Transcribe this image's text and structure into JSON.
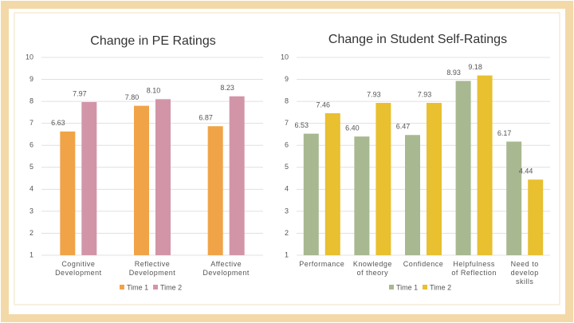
{
  "chart_data": [
    {
      "type": "bar",
      "title": "Change in PE Ratings",
      "categories": [
        "Cognitive Development",
        "Reflective Development",
        "Affective Development"
      ],
      "series": [
        {
          "name": "Time 1",
          "color": "#f0a447",
          "values": [
            6.63,
            7.8,
            6.87
          ],
          "value_labels": [
            "6.63",
            "7.80",
            "6.87"
          ]
        },
        {
          "name": "Time 2",
          "color": "#d295a8",
          "values": [
            7.97,
            8.1,
            8.23
          ],
          "value_labels": [
            "7.97",
            "8.10",
            "8.23"
          ]
        }
      ],
      "ylim": [
        1,
        10
      ],
      "yticks": [
        1,
        2,
        3,
        4,
        5,
        6,
        7,
        8,
        9,
        10
      ],
      "grid": true
    },
    {
      "type": "bar",
      "title": "Change in Student Self-Ratings",
      "categories": [
        "Performance",
        "Knowledge of theory",
        "Confidence",
        "Helpfulness of Reflection",
        "Need to develop skills"
      ],
      "series": [
        {
          "name": "Time 1",
          "color": "#a8b890",
          "values": [
            6.53,
            6.4,
            6.47,
            8.93,
            6.17
          ],
          "value_labels": [
            "6.53",
            "6.40",
            "6.47",
            "8.93",
            "6.17"
          ]
        },
        {
          "name": "Time 2",
          "color": "#e8c030",
          "values": [
            7.46,
            7.93,
            7.93,
            9.18,
            4.44
          ],
          "value_labels": [
            "7.46",
            "7.93",
            "7.93",
            "9.18",
            "4.44"
          ]
        }
      ],
      "ylim": [
        1,
        10
      ],
      "yticks": [
        1,
        2,
        3,
        4,
        5,
        6,
        7,
        8,
        9,
        10
      ],
      "grid": true
    }
  ]
}
